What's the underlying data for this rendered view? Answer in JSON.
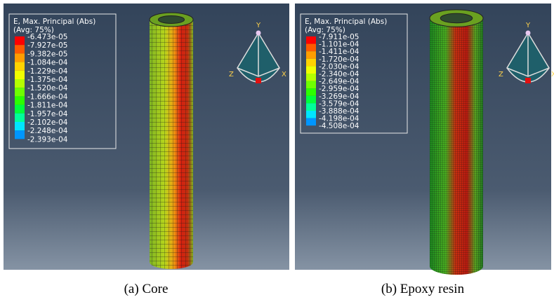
{
  "panels": [
    {
      "legend": {
        "title": "E, Max. Principal (Abs)",
        "subtitle": "(Avg: 75%)",
        "values": [
          "-6.473e-05",
          "-7.927e-05",
          "-9.382e-05",
          "-1.084e-04",
          "-1.229e-04",
          "-1.375e-04",
          "-1.520e-04",
          "-1.666e-04",
          "-1.811e-04",
          "-1.957e-04",
          "-2.102e-04",
          "-2.248e-04",
          "-2.393e-04"
        ]
      },
      "triad": {
        "y": "Y",
        "z": "Z",
        "x": "X"
      },
      "caption": "(a) Core"
    },
    {
      "legend": {
        "title": "E, Max. Principal (Abs)",
        "subtitle": "(Avg: 75%)",
        "values": [
          "-7.911e-05",
          "-1.101e-04",
          "-1.411e-04",
          "-1.720e-04",
          "-2.030e-04",
          "-2.340e-04",
          "-2.649e-04",
          "-2.959e-04",
          "-3.269e-04",
          "-3.579e-04",
          "-3.888e-04",
          "-4.198e-04",
          "-4.508e-04"
        ]
      },
      "triad": {
        "y": "Y",
        "z": "Z",
        "x": "X"
      },
      "caption": "(b) Epoxy resin"
    }
  ]
}
